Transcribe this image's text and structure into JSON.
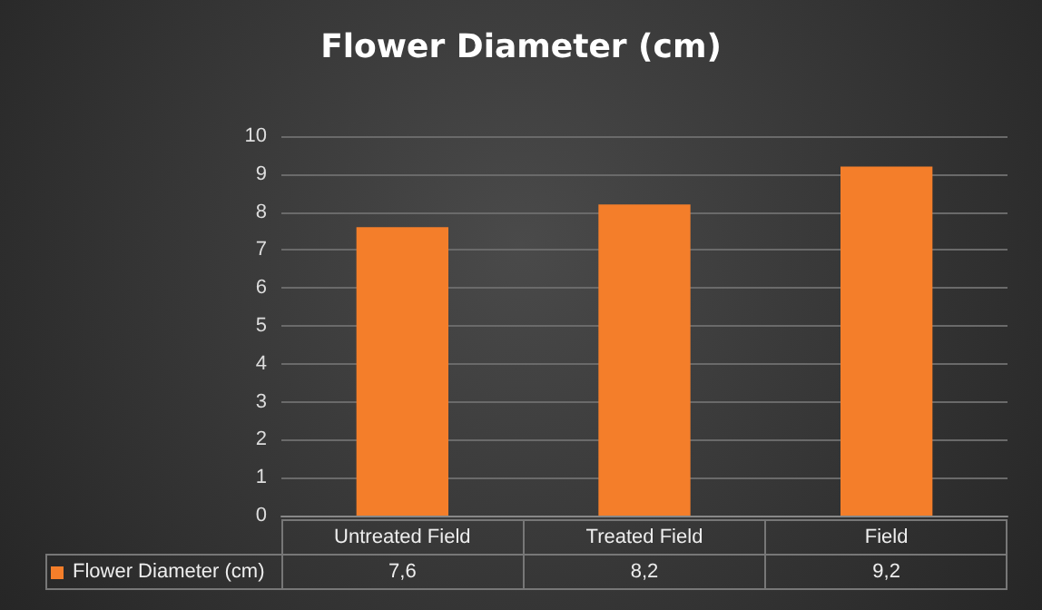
{
  "chart_data": {
    "type": "bar",
    "title": "Flower Diameter (cm)",
    "categories": [
      "Untreated Field",
      "Treated Field",
      "Field"
    ],
    "series": [
      {
        "name": "Flower Diameter (cm)",
        "color": "#f47e2a",
        "values": [
          7.6,
          8.2,
          9.2
        ],
        "value_labels": [
          "7,6",
          "8,2",
          "9,2"
        ]
      }
    ],
    "ylim": [
      0,
      10
    ],
    "yticks": [
      0,
      1,
      2,
      3,
      4,
      5,
      6,
      7,
      8,
      9,
      10
    ],
    "grid": "y",
    "legend": "bottom"
  }
}
